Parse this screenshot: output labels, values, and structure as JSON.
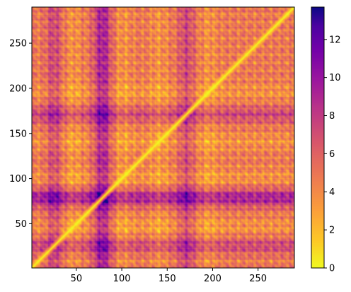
{
  "chart_data": {
    "type": "heatmap",
    "title": "",
    "xlabel": "",
    "ylabel": "",
    "colormap": "plasma_r",
    "xlim": [
      1,
      290
    ],
    "ylim": [
      1,
      290
    ],
    "x_ticks": [
      50,
      100,
      150,
      200,
      250
    ],
    "y_ticks": [
      50,
      100,
      150,
      200,
      250
    ],
    "colorbar": {
      "range": [
        0,
        13.7
      ],
      "ticks": [
        0,
        2,
        4,
        6,
        8,
        10,
        12
      ]
    },
    "matrix_description_values": {
      "size": 290,
      "symmetric": true,
      "diagonal_value": 0,
      "high_bands": [
        24,
        75,
        80,
        170
      ],
      "low_bands": [
        45,
        100,
        140,
        195
      ]
    },
    "colors": {
      "low": "#f0f921",
      "mid_low": "#fca636",
      "mid": "#e16462",
      "mid_high": "#b12a90",
      "high": "#6a00a8",
      "max": "#0d0887"
    }
  }
}
